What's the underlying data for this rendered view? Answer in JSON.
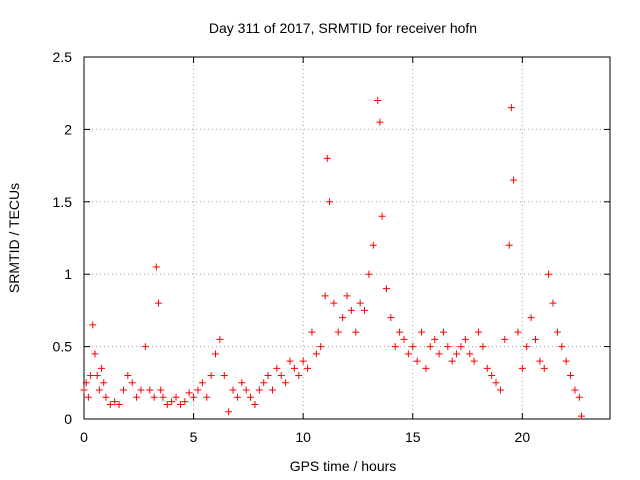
{
  "chart_data": {
    "type": "scatter",
    "title": "Day 311 of 2017, SRMTID for receiver hofn",
    "xlabel": "GPS time / hours",
    "ylabel": "SRMTID / TECUs",
    "xlim": [
      0,
      24
    ],
    "ylim": [
      0,
      2.5
    ],
    "xticks": [
      0,
      5,
      10,
      15,
      20
    ],
    "xtick_labels": [
      "0",
      "5",
      "10",
      "15",
      "20"
    ],
    "yticks": [
      0,
      0.5,
      1,
      1.5,
      2,
      2.5
    ],
    "ytick_labels": [
      "0",
      "0.5",
      "1",
      "1.5",
      "2",
      "2.5"
    ],
    "grid": true,
    "marker": "plus",
    "color": "#ff0000",
    "series": [
      {
        "name": "SRMTID",
        "x": [
          0.0,
          0.1,
          0.2,
          0.3,
          0.4,
          0.5,
          0.6,
          0.7,
          0.8,
          0.9,
          1.0,
          1.2,
          1.4,
          1.6,
          1.8,
          2.0,
          2.2,
          2.4,
          2.6,
          2.8,
          3.0,
          3.2,
          3.3,
          3.4,
          3.5,
          3.6,
          3.8,
          4.0,
          4.2,
          4.4,
          4.6,
          4.8,
          5.0,
          5.2,
          5.4,
          5.6,
          5.8,
          6.0,
          6.2,
          6.4,
          6.6,
          6.8,
          7.0,
          7.2,
          7.4,
          7.6,
          7.8,
          8.0,
          8.2,
          8.4,
          8.6,
          8.8,
          9.0,
          9.2,
          9.4,
          9.6,
          9.8,
          10.0,
          10.2,
          10.4,
          10.6,
          10.8,
          11.0,
          11.1,
          11.2,
          11.4,
          11.6,
          11.8,
          12.0,
          12.2,
          12.4,
          12.6,
          12.8,
          13.0,
          13.2,
          13.4,
          13.5,
          13.6,
          13.8,
          14.0,
          14.2,
          14.4,
          14.6,
          14.8,
          15.0,
          15.2,
          15.4,
          15.6,
          15.8,
          16.0,
          16.2,
          16.4,
          16.6,
          16.8,
          17.0,
          17.2,
          17.4,
          17.6,
          17.8,
          18.0,
          18.2,
          18.4,
          18.6,
          18.8,
          19.0,
          19.2,
          19.4,
          19.5,
          19.6,
          19.8,
          20.0,
          20.2,
          20.4,
          20.6,
          20.8,
          21.0,
          21.2,
          21.4,
          21.6,
          21.8,
          22.0,
          22.2,
          22.4,
          22.6,
          22.7
        ],
        "y": [
          0.2,
          0.25,
          0.15,
          0.3,
          0.65,
          0.45,
          0.3,
          0.2,
          0.35,
          0.25,
          0.15,
          0.1,
          0.12,
          0.1,
          0.2,
          0.3,
          0.25,
          0.15,
          0.2,
          0.5,
          0.2,
          0.15,
          1.05,
          0.8,
          0.2,
          0.15,
          0.1,
          0.12,
          0.15,
          0.1,
          0.12,
          0.18,
          0.15,
          0.2,
          0.25,
          0.15,
          0.3,
          0.45,
          0.55,
          0.3,
          0.05,
          0.2,
          0.15,
          0.25,
          0.2,
          0.15,
          0.1,
          0.2,
          0.25,
          0.3,
          0.2,
          0.35,
          0.3,
          0.25,
          0.4,
          0.35,
          0.3,
          0.4,
          0.35,
          0.6,
          0.45,
          0.5,
          0.85,
          1.8,
          1.5,
          0.8,
          0.6,
          0.7,
          0.85,
          0.75,
          0.6,
          0.8,
          0.75,
          1.0,
          1.2,
          2.2,
          2.05,
          1.4,
          0.9,
          0.7,
          0.5,
          0.6,
          0.55,
          0.45,
          0.5,
          0.4,
          0.6,
          0.35,
          0.5,
          0.55,
          0.45,
          0.6,
          0.5,
          0.4,
          0.45,
          0.5,
          0.55,
          0.45,
          0.4,
          0.6,
          0.5,
          0.35,
          0.3,
          0.25,
          0.2,
          0.55,
          1.2,
          2.15,
          1.65,
          0.6,
          0.35,
          0.5,
          0.7,
          0.55,
          0.4,
          0.35,
          1.0,
          0.8,
          0.6,
          0.5,
          0.4,
          0.3,
          0.2,
          0.15,
          0.02
        ]
      }
    ]
  }
}
